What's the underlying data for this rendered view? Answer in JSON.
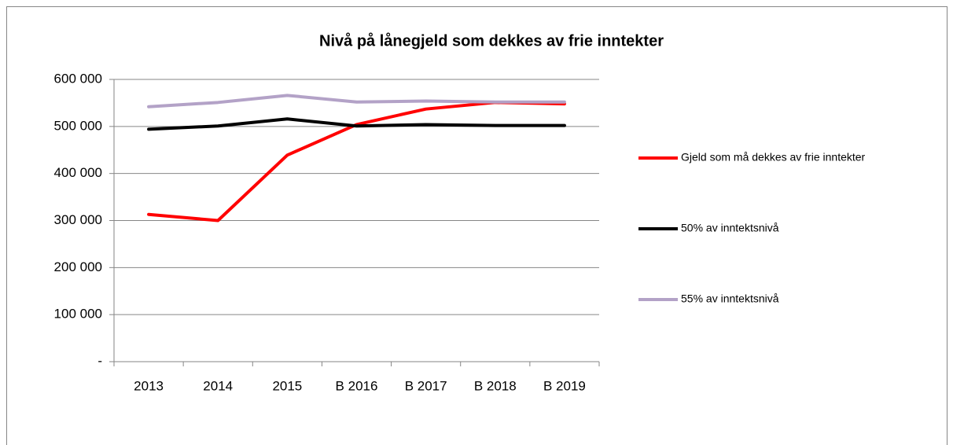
{
  "chart_data": {
    "type": "line",
    "title": "Nivå på lånegjeld som dekkes av frie inntekter",
    "categories": [
      "2013",
      "2014",
      "2015",
      "B 2016",
      "B 2017",
      "B 2018",
      "B 2019"
    ],
    "series": [
      {
        "name": "Gjeld som må dekkes av frie inntekter",
        "color": "#ff0000",
        "values": [
          313000,
          300000,
          439000,
          504000,
          537000,
          551000,
          548000
        ]
      },
      {
        "name": "50% av inntektsnivå",
        "color": "#000000",
        "values": [
          494000,
          501000,
          516000,
          501000,
          504000,
          502000,
          502000
        ]
      },
      {
        "name": "55% av inntektsnivå",
        "color": "#b3a2c7",
        "values": [
          542000,
          551000,
          566000,
          552000,
          554000,
          552000,
          552000
        ]
      }
    ],
    "ylim": [
      0,
      600000
    ],
    "yticks": [
      {
        "value": 0,
        "label": "-"
      },
      {
        "value": 100000,
        "label": "100 000"
      },
      {
        "value": 200000,
        "label": "200 000"
      },
      {
        "value": 300000,
        "label": "300 000"
      },
      {
        "value": 400000,
        "label": "400 000"
      },
      {
        "value": 500000,
        "label": "500 000"
      },
      {
        "value": 600000,
        "label": "600 000"
      }
    ],
    "grid": true,
    "legend": "right"
  }
}
